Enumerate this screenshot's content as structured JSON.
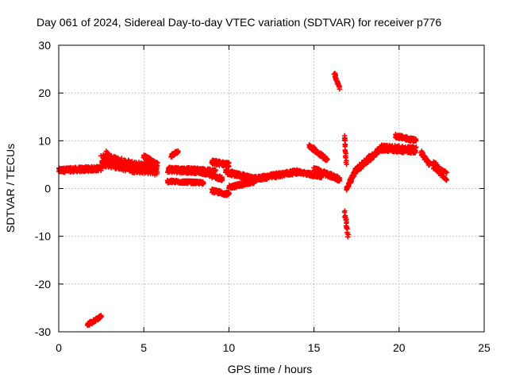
{
  "chart_data": {
    "type": "scatter",
    "title": "Day 061 of 2024, Sidereal Day-to-day VTEC variation (SDTVAR) for receiver p776",
    "xlabel": "GPS time / hours",
    "ylabel": "SDTVAR / TECUs",
    "xlim": [
      0,
      25
    ],
    "ylim": [
      -30,
      30
    ],
    "xticks": [
      0,
      5,
      10,
      15,
      20,
      25
    ],
    "yticks": [
      -30,
      -20,
      -10,
      0,
      10,
      20,
      30
    ],
    "xtick_labels": [
      "0",
      "5",
      "10",
      "15",
      "20",
      "25"
    ],
    "ytick_labels": [
      "-30",
      "-20",
      "-10",
      "0",
      "10",
      "20",
      "30"
    ],
    "grid": true,
    "marker": "+",
    "color": "#ff0000",
    "series": [
      {
        "name": "SDTVAR",
        "segments": [
          {
            "x": [
              0.0,
              2.5
            ],
            "y": [
              3.8,
              4.2
            ],
            "jitter": 0.5
          },
          {
            "x": [
              2.5,
              4.5
            ],
            "y": [
              6.0,
              4.5
            ],
            "jitter": 1.3
          },
          {
            "x": [
              4.5,
              5.8
            ],
            "y": [
              4.5,
              4.0
            ],
            "jitter": 1.2
          },
          {
            "x": [
              2.8,
              3.4
            ],
            "y": [
              7.5,
              4.5
            ],
            "jitter": 0.4
          },
          {
            "x": [
              5.0,
              5.8
            ],
            "y": [
              6.8,
              5.0
            ],
            "jitter": 0.4
          },
          {
            "x": [
              6.6,
              7.0
            ],
            "y": [
              6.8,
              7.8
            ],
            "jitter": 0.3
          },
          {
            "x": [
              6.4,
              9.2
            ],
            "y": [
              4.0,
              3.5
            ],
            "jitter": 0.6
          },
          {
            "x": [
              6.4,
              8.5
            ],
            "y": [
              1.5,
              1.2
            ],
            "jitter": 0.3
          },
          {
            "x": [
              8.0,
              9.6
            ],
            "y": [
              4.0,
              2.0
            ],
            "jitter": 0.5
          },
          {
            "x": [
              9.0,
              10.0
            ],
            "y": [
              5.5,
              5.0
            ],
            "jitter": 0.5
          },
          {
            "x": [
              9.0,
              10.0
            ],
            "y": [
              -0.5,
              -1.2
            ],
            "jitter": 0.4
          },
          {
            "x": [
              9.8,
              11.5
            ],
            "y": [
              3.5,
              2.0
            ],
            "jitter": 0.5
          },
          {
            "x": [
              10.0,
              11.5
            ],
            "y": [
              0.2,
              1.5
            ],
            "jitter": 0.4
          },
          {
            "x": [
              11.5,
              14.0
            ],
            "y": [
              2.0,
              3.5
            ],
            "jitter": 0.5
          },
          {
            "x": [
              14.0,
              15.5
            ],
            "y": [
              3.5,
              2.5
            ],
            "jitter": 0.4
          },
          {
            "x": [
              14.7,
              15.8
            ],
            "y": [
              9.0,
              6.0
            ],
            "jitter": 0.4
          },
          {
            "x": [
              15.0,
              16.5
            ],
            "y": [
              4.0,
              2.0
            ],
            "jitter": 0.5
          },
          {
            "x": [
              16.2,
              16.5
            ],
            "y": [
              24.0,
              21.0
            ],
            "jitter": 0.3
          },
          {
            "x": [
              16.8,
              16.9
            ],
            "y": [
              11.0,
              5.0
            ],
            "jitter": 0.3
          },
          {
            "x": [
              16.8,
              17.0
            ],
            "y": [
              -5.0,
              -10.0
            ],
            "jitter": 0.4
          },
          {
            "x": [
              16.9,
              17.5
            ],
            "y": [
              0.0,
              4.0
            ],
            "jitter": 0.5
          },
          {
            "x": [
              17.5,
              19.0
            ],
            "y": [
              4.0,
              8.5
            ],
            "jitter": 0.6
          },
          {
            "x": [
              19.0,
              21.0
            ],
            "y": [
              8.5,
              8.0
            ],
            "jitter": 0.7
          },
          {
            "x": [
              19.8,
              21.0
            ],
            "y": [
              11.0,
              10.0
            ],
            "jitter": 0.4
          },
          {
            "x": [
              21.3,
              21.8
            ],
            "y": [
              7.5,
              5.0
            ],
            "jitter": 0.4
          },
          {
            "x": [
              22.0,
              22.8
            ],
            "y": [
              5.0,
              2.5
            ],
            "jitter": 0.9
          },
          {
            "x": [
              1.7,
              2.5
            ],
            "y": [
              -28.5,
              -26.8
            ],
            "jitter": 0.3
          }
        ]
      }
    ]
  }
}
